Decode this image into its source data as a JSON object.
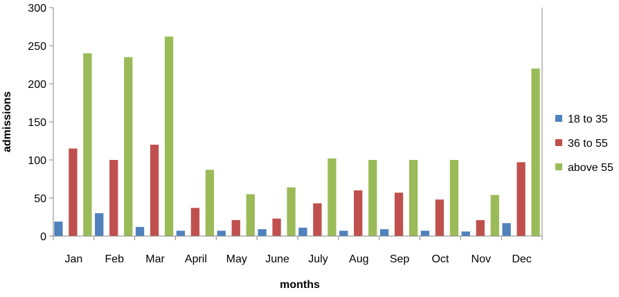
{
  "chart_data": {
    "type": "bar",
    "title": "",
    "xlabel": "months",
    "ylabel": "admissions",
    "ylim": [
      0,
      300
    ],
    "yticks": [
      0,
      50,
      100,
      150,
      200,
      250,
      300
    ],
    "grid": false,
    "legend_position": "right",
    "categories": [
      "Jan",
      "Feb",
      "Mar",
      "April",
      "May",
      "June",
      "July",
      "Aug",
      "Sep",
      "Oct",
      "Nov",
      "Dec"
    ],
    "series": [
      {
        "name": "18 to 35",
        "color": "#4F81BD",
        "values": [
          19,
          30,
          12,
          7,
          7,
          9,
          11,
          7,
          9,
          7,
          6,
          17
        ]
      },
      {
        "name": "36 to 55",
        "color": "#C0504D",
        "values": [
          115,
          100,
          120,
          37,
          21,
          23,
          43,
          60,
          57,
          48,
          21,
          97
        ]
      },
      {
        "name": "above 55",
        "color": "#9BBB59",
        "values": [
          240,
          235,
          262,
          87,
          55,
          64,
          102,
          100,
          100,
          100,
          54,
          220
        ]
      }
    ]
  }
}
